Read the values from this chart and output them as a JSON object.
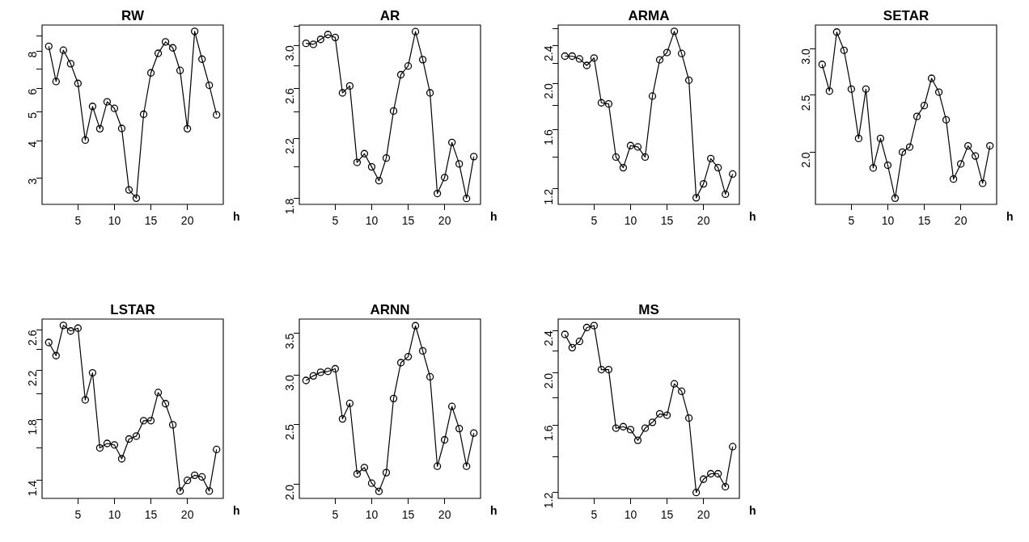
{
  "chart_data": [
    {
      "type": "line",
      "title": "RW",
      "xlabel": "h",
      "color": "#000000",
      "marker": "circle",
      "line_style": "solid",
      "log": "y",
      "xlim": [
        0.08,
        24.92
      ],
      "xticks": [
        5,
        10,
        15,
        20
      ],
      "ylim": [
        2.45,
        9.82
      ],
      "yticks": [
        3,
        4,
        5,
        6,
        {
          "value": 7,
          "label": null
        },
        8,
        {
          "value": 9,
          "label": null
        }
      ],
      "x": [
        1,
        2,
        3,
        4,
        5,
        6,
        7,
        8,
        9,
        10,
        11,
        12,
        13,
        14,
        15,
        16,
        17,
        18,
        19,
        20,
        21,
        22,
        23,
        24
      ],
      "values": [
        8.33,
        6.34,
        8.08,
        7.28,
        6.25,
        4.03,
        5.23,
        4.4,
        5.42,
        5.15,
        4.41,
        2.74,
        2.57,
        4.92,
        6.78,
        7.89,
        8.62,
        8.23,
        6.91,
        4.4,
        9.35,
        7.54,
        6.16,
        4.9
      ]
    },
    {
      "type": "line",
      "title": "AR",
      "xlabel": "h",
      "color": "#000000",
      "marker": "circle",
      "line_style": "solid",
      "log": "y",
      "xlim": [
        0.08,
        24.92
      ],
      "xticks": [
        5,
        10,
        15,
        20
      ],
      "ylim": [
        1.765,
        3.21
      ],
      "yticks": [
        1.8,
        {
          "value": 2.0,
          "label": null
        },
        2.2,
        {
          "value": 2.4,
          "label": null
        },
        2.6,
        {
          "value": 2.8,
          "label": null
        },
        {
          "value": 3.0,
          "label": "3.0"
        },
        {
          "value": 3.2,
          "label": null
        }
      ],
      "x": [
        1,
        2,
        3,
        4,
        5,
        6,
        7,
        8,
        9,
        10,
        11,
        12,
        13,
        14,
        15,
        16,
        17,
        18,
        19,
        20,
        21,
        22,
        23,
        24
      ],
      "values": [
        3.02,
        3.01,
        3.06,
        3.11,
        3.08,
        2.56,
        2.62,
        2.03,
        2.09,
        2.0,
        1.91,
        2.06,
        2.41,
        2.72,
        2.8,
        3.14,
        2.86,
        2.56,
        1.83,
        1.93,
        2.17,
        2.02,
        1.8,
        2.07
      ]
    },
    {
      "type": "line",
      "title": "ARMA",
      "xlabel": "h",
      "color": "#000000",
      "marker": "circle",
      "line_style": "solid",
      "log": "y",
      "xlim": [
        0.08,
        24.92
      ],
      "xticks": [
        5,
        10,
        15,
        20
      ],
      "ylim": [
        1.114,
        2.65
      ],
      "yticks": [
        1.2,
        {
          "value": 1.4,
          "label": null
        },
        1.6,
        {
          "value": 1.8,
          "label": null
        },
        {
          "value": 2.0,
          "label": "2.0"
        },
        {
          "value": 2.2,
          "label": null
        },
        2.4,
        {
          "value": 2.6,
          "label": null
        }
      ],
      "x": [
        1,
        2,
        3,
        4,
        5,
        6,
        7,
        8,
        9,
        10,
        11,
        12,
        13,
        14,
        15,
        16,
        17,
        18,
        19,
        20,
        21,
        22,
        23,
        24
      ],
      "values": [
        2.28,
        2.28,
        2.25,
        2.18,
        2.26,
        1.82,
        1.81,
        1.4,
        1.33,
        1.48,
        1.47,
        1.4,
        1.88,
        2.24,
        2.32,
        2.57,
        2.31,
        2.03,
        1.15,
        1.23,
        1.39,
        1.33,
        1.17,
        1.29
      ]
    },
    {
      "type": "line",
      "title": "SETAR",
      "xlabel": "h",
      "color": "#000000",
      "marker": "circle",
      "line_style": "solid",
      "log": "y",
      "xlim": [
        0.08,
        24.92
      ],
      "xticks": [
        5,
        10,
        15,
        20
      ],
      "ylim": [
        1.63,
        3.29
      ],
      "yticks": [
        {
          "value": 2.0,
          "label": "2.0"
        },
        2.5,
        {
          "value": 3.0,
          "label": "3.0"
        }
      ],
      "x": [
        1,
        2,
        3,
        4,
        5,
        6,
        7,
        8,
        9,
        10,
        11,
        12,
        13,
        14,
        15,
        16,
        17,
        18,
        19,
        20,
        21,
        22,
        23,
        24
      ],
      "values": [
        2.82,
        2.54,
        3.2,
        2.98,
        2.56,
        2.11,
        2.56,
        1.88,
        2.11,
        1.9,
        1.67,
        2.0,
        2.04,
        2.3,
        2.4,
        2.67,
        2.53,
        2.27,
        1.8,
        1.91,
        2.05,
        1.97,
        1.77,
        2.05
      ]
    },
    {
      "type": "line",
      "title": "LSTAR",
      "xlabel": "h",
      "color": "#000000",
      "marker": "circle",
      "line_style": "solid",
      "log": "y",
      "xlim": [
        0.08,
        24.92
      ],
      "xticks": [
        5,
        10,
        15,
        20
      ],
      "ylim": [
        1.3,
        2.72
      ],
      "yticks": [
        1.4,
        {
          "value": 1.6,
          "label": null
        },
        1.8,
        {
          "value": 2.0,
          "label": null
        },
        2.2,
        {
          "value": 2.4,
          "label": null
        },
        2.6
      ],
      "x": [
        1,
        2,
        3,
        4,
        5,
        6,
        7,
        8,
        9,
        10,
        11,
        12,
        13,
        14,
        15,
        16,
        17,
        18,
        19,
        20,
        21,
        22,
        23,
        24
      ],
      "values": [
        2.47,
        2.34,
        2.65,
        2.59,
        2.62,
        1.95,
        2.18,
        1.6,
        1.63,
        1.62,
        1.53,
        1.66,
        1.68,
        1.79,
        1.79,
        2.01,
        1.92,
        1.76,
        1.34,
        1.4,
        1.43,
        1.42,
        1.34,
        1.59
      ]
    },
    {
      "type": "line",
      "title": "ARNN",
      "xlabel": "h",
      "color": "#000000",
      "marker": "circle",
      "line_style": "solid",
      "log": "y",
      "xlim": [
        0.08,
        24.92
      ],
      "xticks": [
        5,
        10,
        15,
        20
      ],
      "ylim": [
        1.9,
        3.69
      ],
      "yticks": [
        {
          "value": 2.0,
          "label": "2.0"
        },
        2.5,
        {
          "value": 3.0,
          "label": "3.0"
        },
        3.5
      ],
      "x": [
        1,
        2,
        3,
        4,
        5,
        6,
        7,
        8,
        9,
        10,
        11,
        12,
        13,
        14,
        15,
        16,
        17,
        18,
        19,
        20,
        21,
        22,
        23,
        24
      ],
      "values": [
        2.94,
        2.99,
        3.03,
        3.04,
        3.07,
        2.55,
        2.7,
        2.08,
        2.13,
        2.01,
        1.95,
        2.09,
        2.75,
        3.14,
        3.21,
        3.6,
        3.28,
        2.98,
        2.14,
        2.36,
        2.67,
        2.46,
        2.14,
        2.42
      ]
    },
    {
      "type": "line",
      "title": "MS",
      "xlabel": "h",
      "color": "#000000",
      "marker": "circle",
      "line_style": "solid",
      "log": "y",
      "xlim": [
        0.08,
        24.92
      ],
      "xticks": [
        5,
        10,
        15,
        20
      ],
      "ylim": [
        1.17,
        2.52
      ],
      "yticks": [
        1.2,
        {
          "value": 1.4,
          "label": null
        },
        1.6,
        {
          "value": 1.8,
          "label": null
        },
        {
          "value": 2.0,
          "label": "2.0"
        },
        {
          "value": 2.2,
          "label": null
        },
        2.4
      ],
      "x": [
        1,
        2,
        3,
        4,
        5,
        6,
        7,
        8,
        9,
        10,
        11,
        12,
        13,
        14,
        15,
        16,
        17,
        18,
        19,
        20,
        21,
        22,
        23,
        24
      ],
      "values": [
        2.36,
        2.23,
        2.29,
        2.43,
        2.45,
        2.03,
        2.03,
        1.58,
        1.59,
        1.57,
        1.5,
        1.58,
        1.62,
        1.68,
        1.67,
        1.91,
        1.85,
        1.65,
        1.2,
        1.27,
        1.3,
        1.3,
        1.23,
        1.46
      ]
    }
  ]
}
